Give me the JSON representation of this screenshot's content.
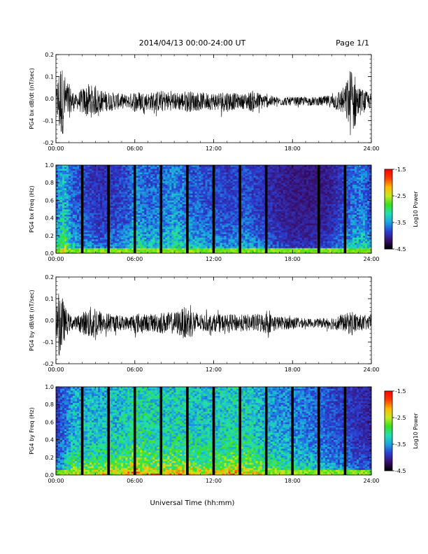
{
  "header": {
    "title": "2014/04/13  00:00-24:00 UT",
    "page": "Page 1/1"
  },
  "colors": {
    "line": "#000000",
    "colorbar": [
      "#000000",
      "#3a0f6e",
      "#2a3fd6",
      "#1aa3e0",
      "#22e0b0",
      "#36e020",
      "#c8e820",
      "#ffb800",
      "#ff3a00",
      "#ff0000"
    ]
  },
  "chart_data": [
    {
      "type": "line",
      "ylabel": "PG4 bx dB/dt (nT/sec)",
      "ylim": [
        -0.2,
        0.2
      ],
      "yticks": [
        "0.2",
        "0.1",
        "0.0",
        "-0.1",
        "-0.2"
      ],
      "xlim": [
        "00:00",
        "24:00"
      ],
      "xticks": [
        "00:00",
        "06:00",
        "12:00",
        "18:00",
        "24:00"
      ],
      "amplitude_envelope": {
        "hours": [
          0,
          0.3,
          0.8,
          1.5,
          2.0,
          2.5,
          3.5,
          4.5,
          5.5,
          6.0,
          7.0,
          8.0,
          9.0,
          10.0,
          11.0,
          12.0,
          13.0,
          14.0,
          15.0,
          16.0,
          17.0,
          18.0,
          19.0,
          20.0,
          21.0,
          22.0,
          22.5,
          23.0,
          24.0
        ],
        "nT_per_sec": [
          0.05,
          0.19,
          0.1,
          0.03,
          0.06,
          0.08,
          0.05,
          0.04,
          0.03,
          0.05,
          0.04,
          0.05,
          0.04,
          0.05,
          0.04,
          0.04,
          0.05,
          0.03,
          0.05,
          0.03,
          0.02,
          0.02,
          0.02,
          0.02,
          0.03,
          0.07,
          0.18,
          0.07,
          0.03
        ]
      }
    },
    {
      "type": "heatmap",
      "ylabel": "PG4 bx Freq (Hz)",
      "ylim": [
        0,
        1
      ],
      "yticks": [
        "1.0",
        "0.8",
        "0.6",
        "0.4",
        "0.2",
        "0.0"
      ],
      "xlim": [
        "00:00",
        "24:00"
      ],
      "xticks": [
        "00:00",
        "06:00",
        "12:00",
        "18:00",
        "24:00"
      ],
      "colorbar": {
        "label": "Log10 Power",
        "range": [
          -4.5,
          -1.5
        ],
        "ticks": [
          "-1.5",
          "-2.5",
          "-3.5",
          "-4.5"
        ]
      },
      "data_gaps_hours": [
        2.0,
        4.0,
        6.0,
        8.0,
        10.0,
        12.0,
        14.0,
        16.0,
        20.0,
        22.0
      ],
      "activity_hours": [
        0,
        0.6,
        1.2,
        2.5,
        3.5,
        5.5,
        6.0,
        7.0,
        8.5,
        9.0,
        10.0,
        12.0,
        13.0,
        14.5,
        16.0,
        17.0,
        18.0,
        20.0,
        21.0,
        22.5,
        23.5,
        24.0
      ],
      "activity_level": [
        0.55,
        0.75,
        0.5,
        0.4,
        0.35,
        0.45,
        0.6,
        0.5,
        0.55,
        0.6,
        0.5,
        0.45,
        0.4,
        0.45,
        0.35,
        0.3,
        0.25,
        0.25,
        0.3,
        0.5,
        0.55,
        0.4
      ]
    },
    {
      "type": "line",
      "ylabel": "PG4 by dB/dt (nT/sec)",
      "ylim": [
        -0.2,
        0.2
      ],
      "yticks": [
        "0.2",
        "0.1",
        "0.0",
        "-0.1",
        "-0.2"
      ],
      "xlim": [
        "00:00",
        "24:00"
      ],
      "xticks": [
        "00:00",
        "06:00",
        "12:00",
        "18:00",
        "24:00"
      ],
      "amplitude_envelope": {
        "hours": [
          0,
          0.3,
          0.6,
          1.0,
          1.5,
          2.0,
          2.5,
          3.0,
          3.5,
          4.5,
          5.5,
          6.0,
          7.0,
          8.0,
          9.0,
          10.0,
          11.0,
          12.0,
          13.0,
          14.0,
          15.0,
          16.0,
          17.0,
          18.0,
          19.0,
          20.0,
          21.0,
          22.0,
          22.5,
          23.0,
          24.0
        ],
        "nT_per_sec": [
          0.05,
          0.18,
          0.09,
          0.04,
          0.03,
          0.05,
          0.07,
          0.09,
          0.05,
          0.04,
          0.03,
          0.05,
          0.04,
          0.05,
          0.05,
          0.08,
          0.04,
          0.04,
          0.04,
          0.04,
          0.04,
          0.05,
          0.03,
          0.03,
          0.02,
          0.02,
          0.03,
          0.04,
          0.06,
          0.04,
          0.03
        ]
      }
    },
    {
      "type": "heatmap",
      "ylabel": "PG4 by Freq (Hz)",
      "ylim": [
        0,
        1
      ],
      "yticks": [
        "1.0",
        "0.8",
        "0.6",
        "0.4",
        "0.2",
        "0.0"
      ],
      "xlim": [
        "00:00",
        "24:00"
      ],
      "xticks": [
        "00:00",
        "06:00",
        "12:00",
        "18:00",
        "24:00"
      ],
      "xlabel": "Universal Time (hh:mm)",
      "colorbar": {
        "label": "Log10 Power",
        "range": [
          -4.5,
          -1.5
        ],
        "ticks": [
          "-1.5",
          "-2.5",
          "-3.5",
          "-4.5"
        ]
      },
      "data_gaps_hours": [
        2.0,
        4.0,
        6.0,
        8.0,
        10.0,
        12.0,
        14.0,
        16.0,
        18.0,
        20.0,
        22.0
      ],
      "activity_hours": [
        0,
        0.5,
        1.5,
        3.0,
        5.0,
        6.0,
        7.0,
        8.5,
        9.5,
        10.5,
        12.0,
        13.0,
        14.0,
        15.0,
        16.0,
        17.0,
        18.0,
        19.0,
        20.0,
        21.0,
        22.0,
        23.0,
        24.0
      ],
      "activity_level": [
        0.35,
        0.5,
        0.7,
        0.72,
        0.75,
        0.85,
        0.82,
        0.78,
        0.8,
        0.78,
        0.75,
        0.78,
        0.82,
        0.75,
        0.68,
        0.62,
        0.6,
        0.55,
        0.5,
        0.45,
        0.4,
        0.35,
        0.3
      ]
    }
  ]
}
